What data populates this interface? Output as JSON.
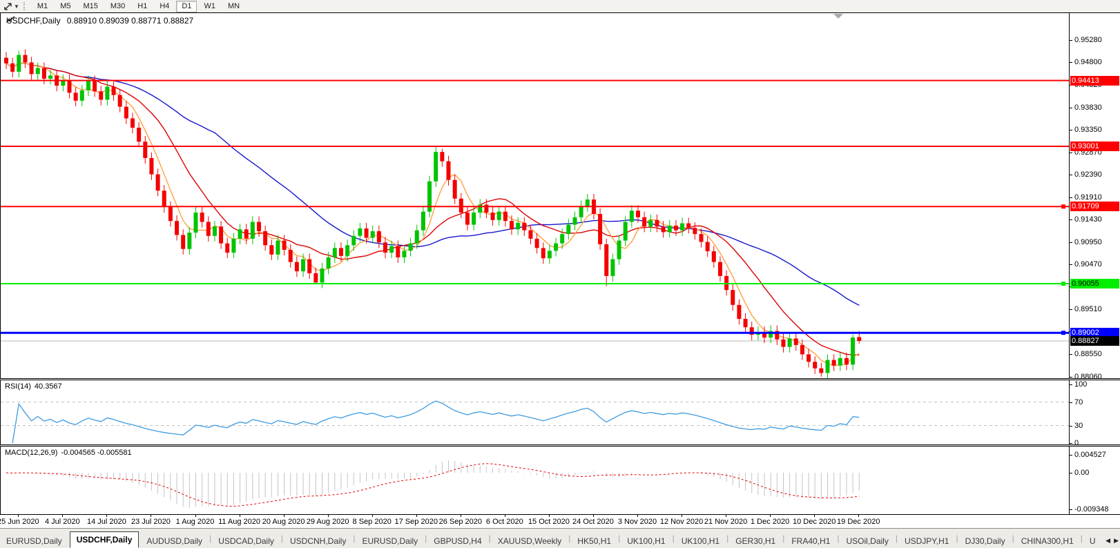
{
  "toolbar": {
    "timeframes": [
      "M1",
      "M5",
      "M15",
      "M30",
      "H1",
      "H4",
      "D1",
      "W1",
      "MN"
    ],
    "active_timeframe": "D1"
  },
  "chart": {
    "symbol_title": "USDCHF,Daily",
    "ohlc_text": "0.88910 0.89039 0.88771 0.88827",
    "price_axis": [
      "0.95280",
      "0.94800",
      "0.94320",
      "0.93830",
      "0.93350",
      "0.92870",
      "0.92390",
      "0.91910",
      "0.91430",
      "0.90950",
      "0.90470",
      "0.89990",
      "0.89510",
      "0.89030",
      "0.88550",
      "0.88060"
    ],
    "levels": [
      {
        "value": 0.94413,
        "label": "0.94413",
        "color": "#FF0000",
        "text_color": "#FFFFFF",
        "width": 2,
        "handle": false
      },
      {
        "value": 0.93001,
        "label": "0.93001",
        "color": "#FF0000",
        "text_color": "#FFFFFF",
        "width": 2,
        "handle": false
      },
      {
        "value": 0.91709,
        "label": "0.91709",
        "color": "#FF0000",
        "text_color": "#FFFFFF",
        "width": 2,
        "handle": true
      },
      {
        "value": 0.90055,
        "label": "0.90055",
        "color": "#00EE00",
        "text_color": "#000000",
        "width": 2,
        "handle": true
      },
      {
        "value": 0.89002,
        "label": "0.89002",
        "color": "#0000FF",
        "text_color": "#FFFFFF",
        "width": 3,
        "handle": true
      }
    ],
    "current_price": {
      "value": 0.88827,
      "label": "0.88827"
    }
  },
  "rsi": {
    "label": "RSI(14)",
    "value": "40.3567",
    "axis": [
      "100",
      "70",
      "30",
      "0"
    ],
    "dashed_levels": [
      70,
      30
    ]
  },
  "macd": {
    "label": "MACD(12,26,9)",
    "values": "-0.004565 -0.005581",
    "axis": [
      "0.004527",
      "0.00",
      "-0.009348"
    ]
  },
  "dates": [
    "25 Jun 2020",
    "4 Jul 2020",
    "14 Jul 2020",
    "23 Jul 2020",
    "1 Aug 2020",
    "11 Aug 2020",
    "20 Aug 2020",
    "29 Aug 2020",
    "8 Sep 2020",
    "17 Sep 2020",
    "26 Sep 2020",
    "6 Oct 2020",
    "15 Oct 2020",
    "24 Oct 2020",
    "3 Nov 2020",
    "12 Nov 2020",
    "21 Nov 2020",
    "1 Dec 2020",
    "10 Dec 2020",
    "19 Dec 2020"
  ],
  "tabs": {
    "items": [
      "EURUSD,Daily",
      "USDCHF,Daily",
      "AUDUSD,Daily",
      "USDCAD,Daily",
      "USDCNH,Daily",
      "EURUSD,Daily",
      "GBPUSD,H4",
      "XAUUSD,Weekly",
      "HK50,H1",
      "UK100,H1",
      "UK100,H1",
      "GER30,H1",
      "FRA40,H1",
      "USOil,Daily",
      "USDJPY,H1",
      "DJ30,Daily",
      "CHINA300,H1",
      "U"
    ],
    "active_index": 1,
    "scroll_left": "◀",
    "scroll_right": "▶"
  },
  "colors": {
    "bull": "#00C400",
    "bear": "#F40000",
    "ma_fast": "#FFA040",
    "ma_mid": "#DD0000",
    "ma_slow": "#1515CC",
    "rsi_line": "#3E9ADF",
    "dashed_level": "#C0C0C0",
    "macd_hist": "#C4C4C4",
    "macd_signal": "#E00000",
    "current_line": "#B4B4B4",
    "current_chip_bg": "#000000"
  },
  "chart_data": {
    "type": "candlestick",
    "title": "USDCHF,Daily",
    "symbol": "USDCHF",
    "timeframe": "Daily",
    "last_bar_ohlc": {
      "open": 0.8891,
      "high": 0.89039,
      "low": 0.88771,
      "close": 0.88827
    },
    "ylim": [
      0.88043,
      0.95857
    ],
    "x_tick_labels_every_bars": 7,
    "first_open": 0.949,
    "default_wick": 0.0012,
    "closes": [
      0.9478,
      0.946,
      0.9496,
      0.948,
      0.9455,
      0.9468,
      0.9445,
      0.9452,
      0.943,
      0.9442,
      0.9415,
      0.9398,
      0.942,
      0.944,
      0.9418,
      0.94,
      0.9428,
      0.941,
      0.9385,
      0.936,
      0.934,
      0.931,
      0.9275,
      0.924,
      0.9205,
      0.917,
      0.914,
      0.911,
      0.908,
      0.9115,
      0.9158,
      0.9138,
      0.9108,
      0.9128,
      0.9092,
      0.9072,
      0.9102,
      0.9122,
      0.9102,
      0.9138,
      0.9118,
      0.9088,
      0.9068,
      0.9098,
      0.9078,
      0.9052,
      0.9032,
      0.9058,
      0.9028,
      0.9008,
      0.9038,
      0.9062,
      0.9082,
      0.9065,
      0.9088,
      0.9108,
      0.9124,
      0.9104,
      0.9118,
      0.9094,
      0.9072,
      0.9086,
      0.9062,
      0.9076,
      0.9092,
      0.912,
      0.916,
      0.9225,
      0.9288,
      0.9268,
      0.9228,
      0.9188,
      0.9158,
      0.9132,
      0.9158,
      0.9175,
      0.9158,
      0.9142,
      0.916,
      0.914,
      0.9122,
      0.9136,
      0.912,
      0.9102,
      0.9082,
      0.906,
      0.9076,
      0.9092,
      0.9112,
      0.9132,
      0.9148,
      0.9172,
      0.9186,
      0.9155,
      0.909,
      0.9022,
      0.9058,
      0.9098,
      0.9138,
      0.9162,
      0.9148,
      0.9128,
      0.9142,
      0.9128,
      0.9116,
      0.913,
      0.912,
      0.9135,
      0.9125,
      0.9112,
      0.9095,
      0.9075,
      0.9052,
      0.9022,
      0.8992,
      0.896,
      0.893,
      0.8912,
      0.8896,
      0.8902,
      0.889,
      0.8904,
      0.8886,
      0.887,
      0.8888,
      0.8874,
      0.8854,
      0.8838,
      0.8824,
      0.8814,
      0.8842,
      0.883,
      0.8846,
      0.8832,
      0.889,
      0.88827
    ],
    "overrides": {
      "2": {
        "high": 0.9505
      },
      "49": {
        "low": 0.90055
      },
      "68": {
        "high": 0.93001
      },
      "69": {
        "high": 0.9295
      },
      "95": {
        "low": 0.9
      },
      "129": {
        "low": 0.8806
      },
      "134": {
        "high": 0.8896,
        "low": 0.882
      },
      "135": {
        "open": 0.8891,
        "high": 0.89039,
        "low": 0.88771,
        "close": 0.88827
      }
    },
    "moving_averages": {
      "fast_period": 5,
      "mid_period": 13,
      "slow_period": 34
    },
    "horizontal_levels": [
      0.94413,
      0.93001,
      0.91709,
      0.90055,
      0.89002
    ],
    "indicators": [
      {
        "name": "RSI",
        "period": 14,
        "last_value": 40.3567
      },
      {
        "name": "MACD",
        "params": [
          12,
          26,
          9
        ],
        "last_values": [
          -0.004565,
          -0.005581
        ]
      }
    ]
  }
}
